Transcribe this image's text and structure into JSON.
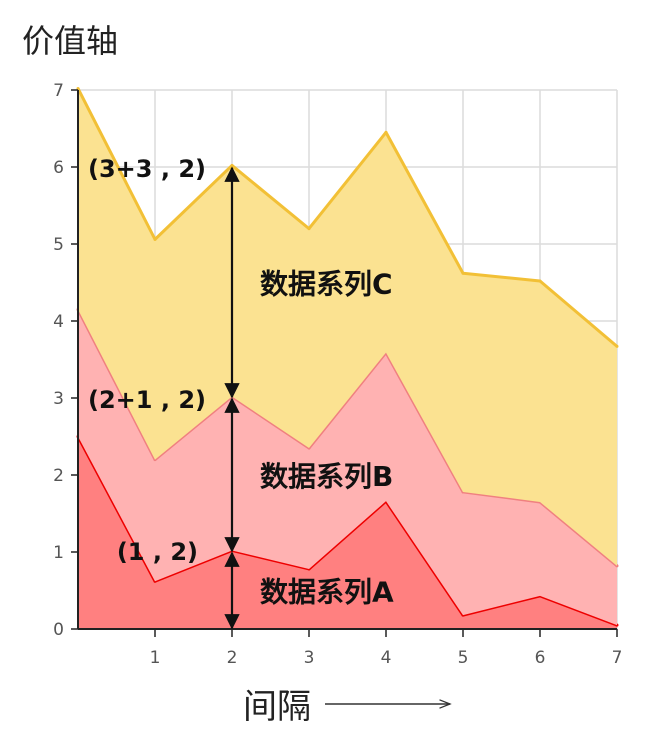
{
  "chart_data": {
    "type": "area",
    "stacked": true,
    "title": "价值轴",
    "xlabel": "间隔",
    "x": [
      0,
      1,
      2,
      3,
      4,
      5,
      6,
      7
    ],
    "xlim": [
      0,
      7
    ],
    "ylim": [
      0,
      7
    ],
    "x_ticks": [
      "1",
      "2",
      "3",
      "4",
      "5",
      "6",
      "7"
    ],
    "y_ticks": [
      "0",
      "1",
      "2",
      "3",
      "4",
      "5",
      "6",
      "7"
    ],
    "grid": true,
    "series": [
      {
        "name": "数据系列A",
        "values": [
          2.5,
          0.62,
          1.02,
          0.78,
          1.66,
          0.18,
          0.43,
          0.05
        ],
        "fill": "#ff8080",
        "stroke": "#ee0000"
      },
      {
        "name": "数据系列B",
        "values": [
          1.65,
          1.58,
          2.0,
          1.57,
          1.93,
          1.6,
          1.22,
          0.77
        ],
        "fill": "#ffb2b2",
        "stroke": "#f08080"
      },
      {
        "name": "数据系列C",
        "values": [
          2.87,
          2.86,
          3.0,
          2.85,
          2.86,
          2.84,
          2.87,
          2.85
        ],
        "fill": "#fbe291",
        "stroke": "#f2c036"
      }
    ],
    "annotations": [
      {
        "text": "(1 , 2)",
        "x": 2,
        "from": 0,
        "to": 1
      },
      {
        "text": "(2+1 , 2)",
        "x": 2,
        "from": 1,
        "to": 3
      },
      {
        "text": "(3+3 , 2)",
        "x": 2,
        "from": 3,
        "to": 6
      }
    ]
  }
}
